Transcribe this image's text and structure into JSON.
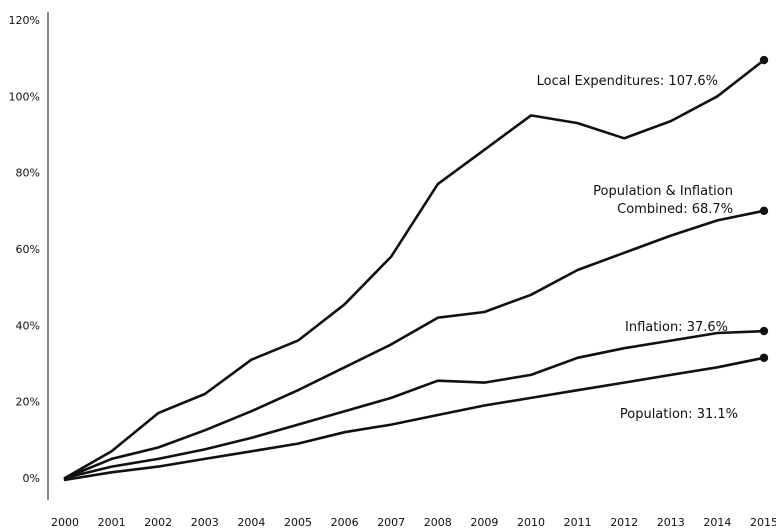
{
  "chart_data": {
    "type": "line",
    "x": [
      2000,
      2001,
      2002,
      2003,
      2004,
      2005,
      2006,
      2007,
      2008,
      2009,
      2010,
      2011,
      2012,
      2013,
      2014,
      2015
    ],
    "ylim": [
      0,
      120
    ],
    "yticks": [
      0,
      20,
      40,
      60,
      80,
      100,
      120
    ],
    "ytick_labels": [
      "0%",
      "20%",
      "40%",
      "60%",
      "80%",
      "100%",
      "120%"
    ],
    "xtick_labels": [
      "2000",
      "2001",
      "2002",
      "2003",
      "2004",
      "2005",
      "2006",
      "2007",
      "2008",
      "2009",
      "2010",
      "2011",
      "2012",
      "2013",
      "2014",
      "2015"
    ],
    "grid": false,
    "legend": "none",
    "series": [
      {
        "label_lines": [
          "Local Expenditures: 107.6%"
        ],
        "values": [
          0,
          7,
          17,
          22,
          31,
          36,
          45.5,
          58,
          77,
          86,
          95,
          93,
          89,
          93.5,
          100,
          109.5
        ]
      },
      {
        "label_lines": [
          "Population & Inflation",
          "Combined: 68.7%"
        ],
        "values": [
          0,
          5,
          8,
          12.5,
          17.5,
          23,
          29,
          35,
          42,
          43.5,
          48,
          54.5,
          59,
          63.5,
          67.5,
          70
        ]
      },
      {
        "label_lines": [
          "Inflation: 37.6%"
        ],
        "values": [
          0,
          3,
          5,
          7.5,
          10.5,
          14,
          17.5,
          21,
          25.5,
          25,
          27,
          31.5,
          34,
          36,
          38,
          38.5
        ]
      },
      {
        "label_lines": [
          "Population: 31.1%"
        ],
        "values": [
          -0.5,
          1.5,
          3,
          5,
          7,
          9,
          12,
          14,
          16.5,
          19,
          21,
          23,
          25,
          27,
          29,
          31.5
        ]
      }
    ],
    "line_color": "#111111"
  }
}
